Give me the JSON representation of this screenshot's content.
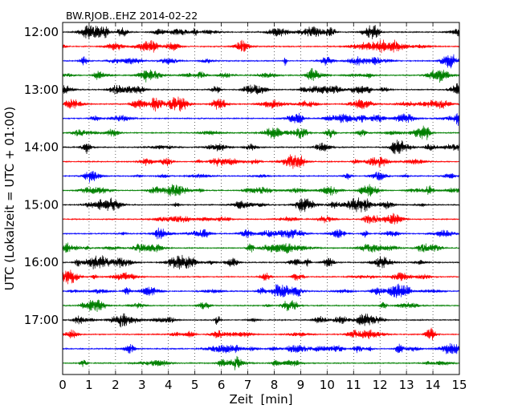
{
  "chart_data": {
    "type": "line",
    "title": "BW.RJOB..EHZ 2014-02-22",
    "xlabel": "Zeit  [min]",
    "ylabel": "UTC (Lokalzeit = UTC + 01:00)",
    "xlim": [
      0,
      15
    ],
    "x_ticks": [
      "0",
      "1",
      "2",
      "3",
      "4",
      "5",
      "6",
      "7",
      "8",
      "9",
      "10",
      "11",
      "12",
      "13",
      "14",
      "15"
    ],
    "y_tick_labels": [
      "12:00",
      "13:00",
      "14:00",
      "15:00",
      "16:00",
      "17:00"
    ],
    "grid": "vertical dotted lines at each minute",
    "trace_colors": [
      "#000000",
      "#ff0000",
      "#0000ff",
      "#008000"
    ],
    "trace_start_times": [
      "12:00",
      "12:15",
      "12:30",
      "12:45",
      "13:00",
      "13:15",
      "13:30",
      "13:45",
      "14:00",
      "14:15",
      "14:30",
      "14:45",
      "15:00",
      "15:15",
      "15:30",
      "15:45",
      "16:00",
      "16:15",
      "16:30",
      "16:45",
      "17:00",
      "17:15",
      "17:30",
      "17:45"
    ],
    "trace_duration_min": 15
  }
}
